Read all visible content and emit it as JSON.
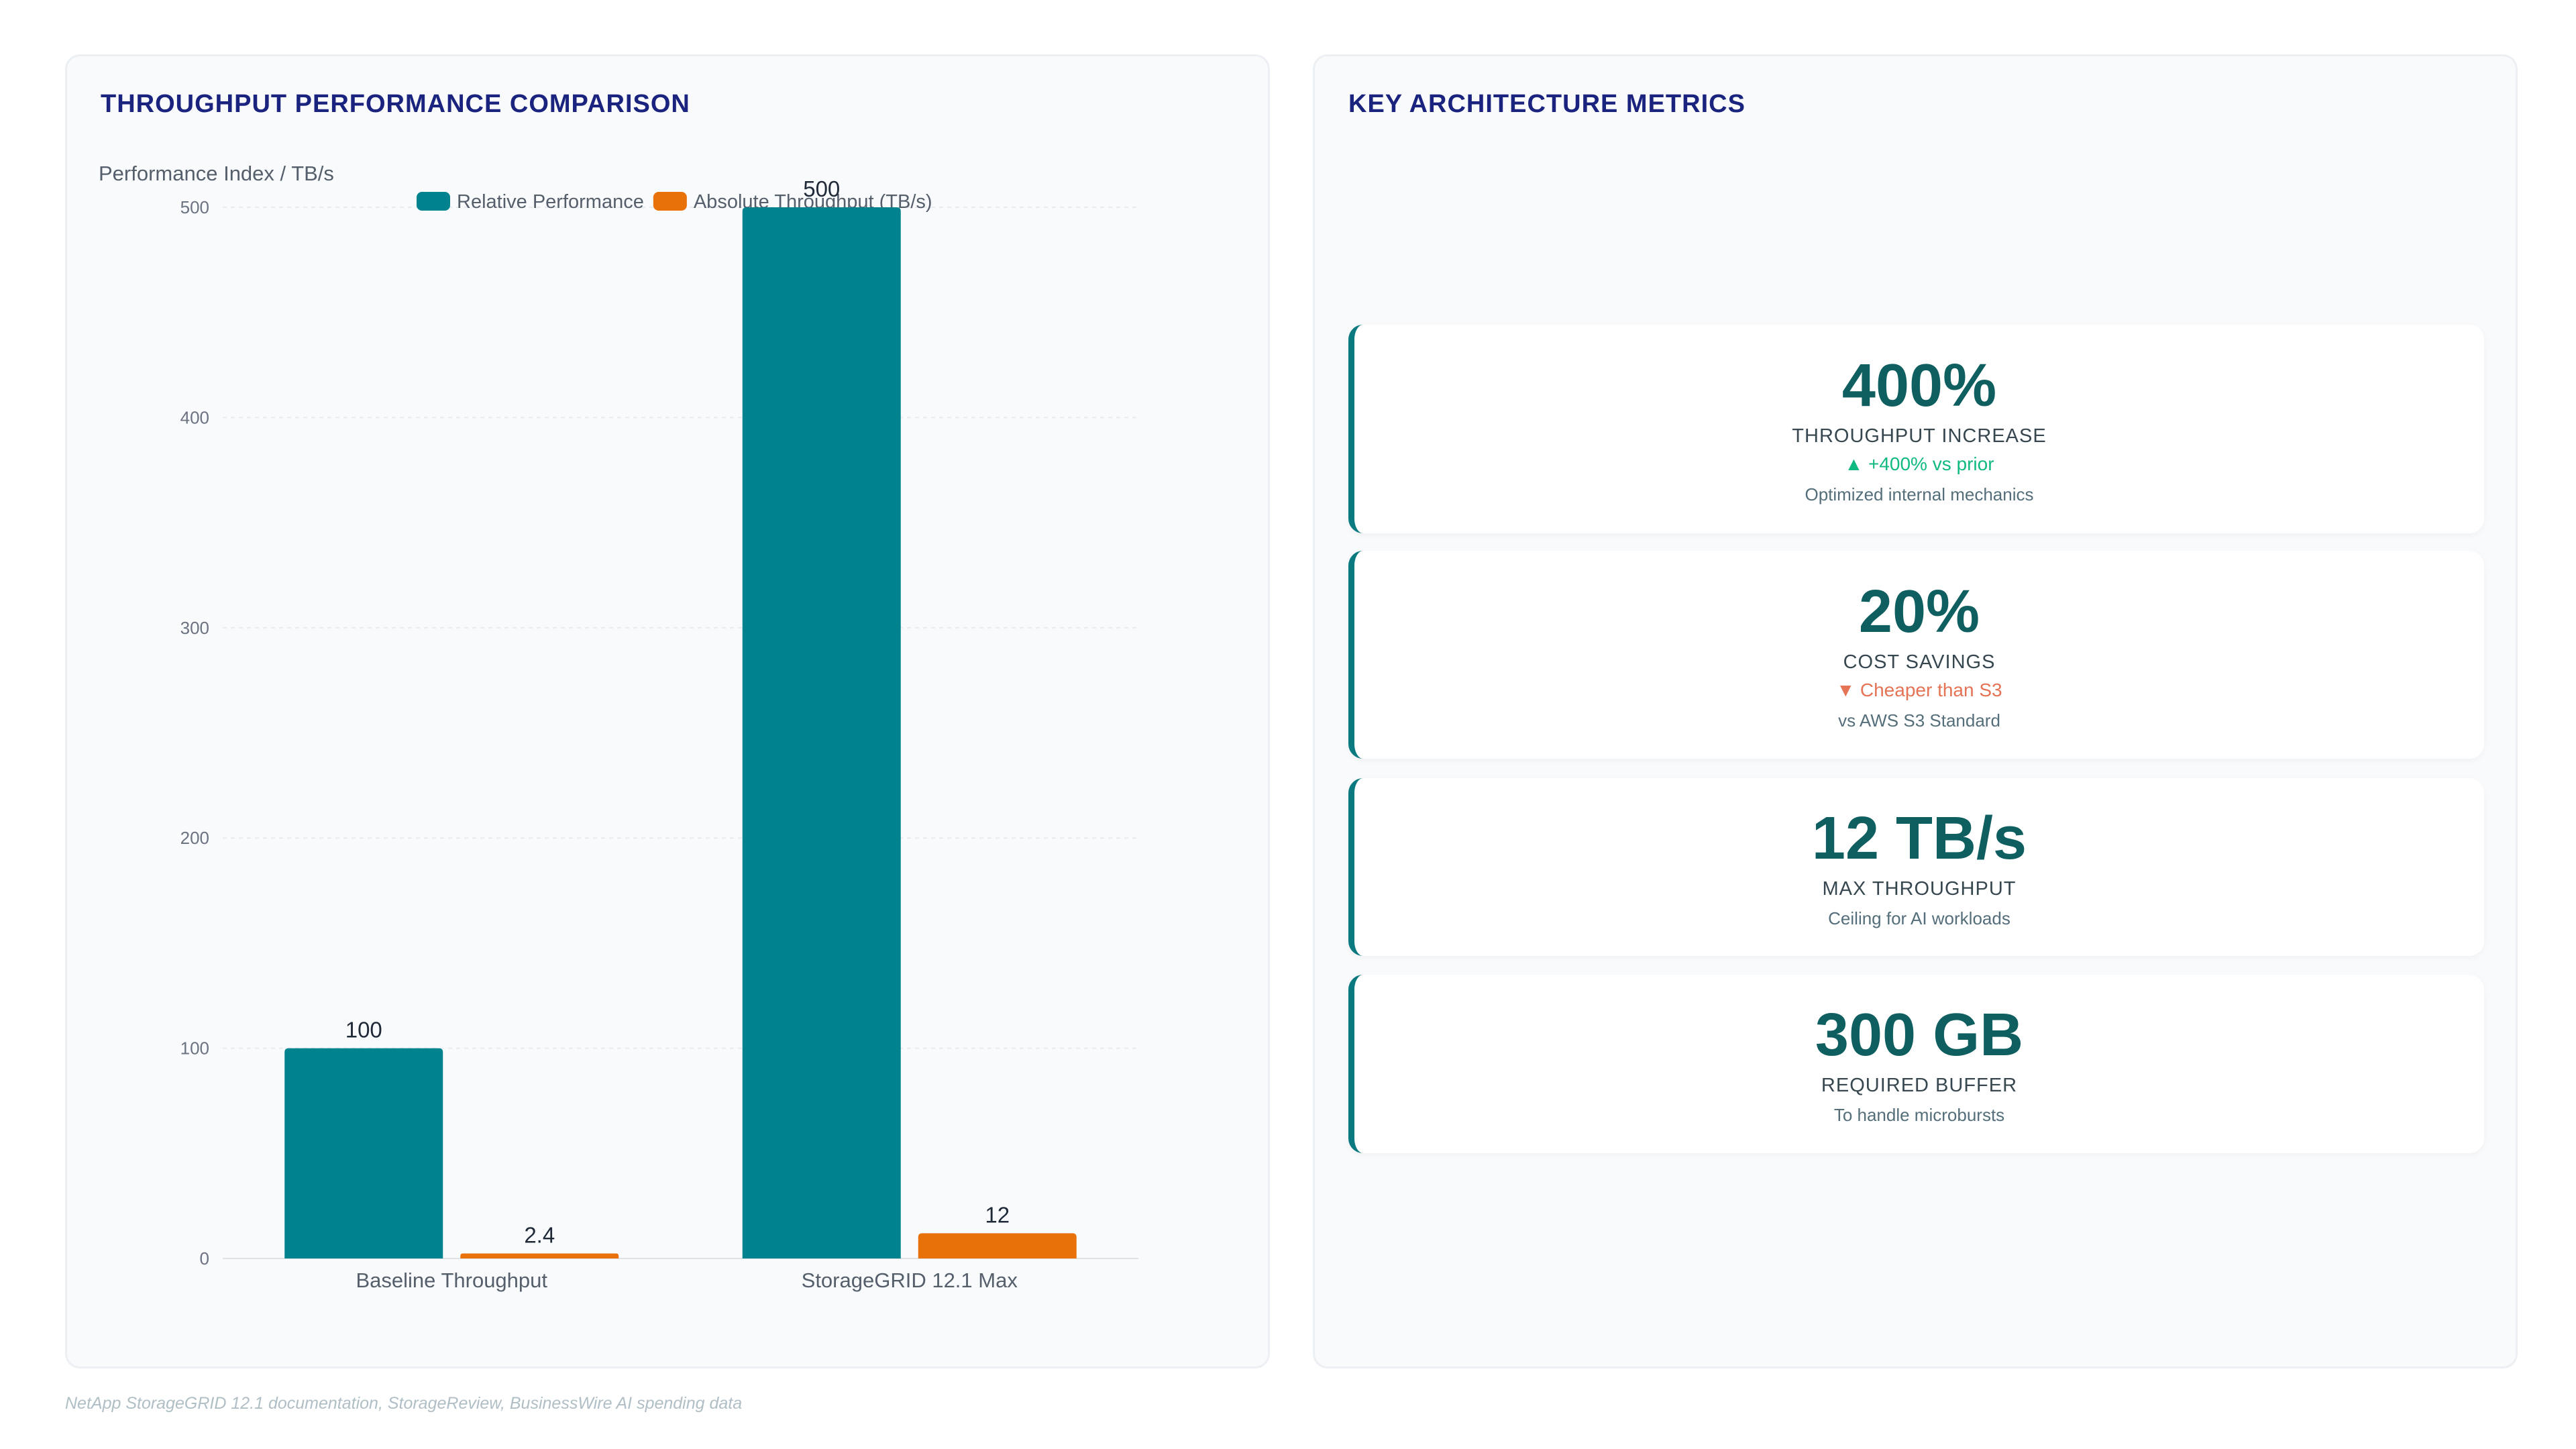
{
  "left_panel": {
    "title": "THROUGHPUT PERFORMANCE COMPARISON"
  },
  "chart_data": {
    "type": "bar",
    "categories": [
      "Baseline Throughput",
      "StorageGRID 12.1 Max"
    ],
    "series": [
      {
        "name": "Relative Performance",
        "values": [
          100,
          500
        ],
        "color": "#00838f"
      },
      {
        "name": "Absolute Throughput (TB/s)",
        "values": [
          2.4,
          12
        ],
        "color": "#e8710a"
      }
    ],
    "data_labels": [
      [
        "100",
        "500"
      ],
      [
        "2.4",
        "12"
      ]
    ],
    "ylabel": "Performance Index / TB/s",
    "xlabel": "",
    "ylim": [
      0,
      500
    ],
    "yticks": [
      0,
      100,
      200,
      300,
      400,
      500
    ],
    "legend_position": "top",
    "grid": true
  },
  "right_panel": {
    "title": "KEY ARCHITECTURE METRICS",
    "metrics": [
      {
        "value": "400%",
        "label": "THROUGHPUT INCREASE",
        "change": "▲ +400% vs prior",
        "change_color": "#10b981",
        "note": "Optimized internal mechanics"
      },
      {
        "value": "20%",
        "label": "COST SAVINGS",
        "change": "▼ Cheaper than S3",
        "change_color": "#e57355",
        "note": "vs AWS S3 Standard"
      },
      {
        "value": "12 TB/s",
        "label": "MAX THROUGHPUT",
        "note": "Ceiling for AI workloads"
      },
      {
        "value": "300 GB",
        "label": "REQUIRED BUFFER",
        "note": "To handle microbursts"
      }
    ]
  },
  "footer": {
    "source": "NetApp StorageGRID 12.1 documentation, StorageReview, BusinessWire AI spending data"
  }
}
